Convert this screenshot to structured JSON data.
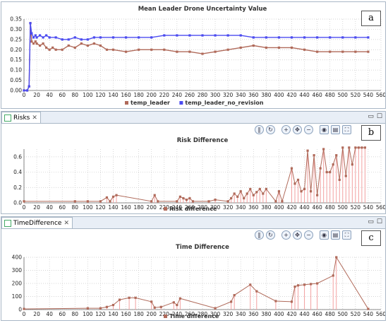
{
  "panels": [
    {
      "id": "a",
      "label": "a",
      "tab": null
    },
    {
      "id": "b",
      "label": "b",
      "tab": "Risks"
    },
    {
      "id": "c",
      "label": "c",
      "tab": "TimeDifference"
    }
  ],
  "colors": {
    "leader": "#b06a5a",
    "no_revision": "#4b4bf0",
    "marker": "#b06a5a",
    "spike": "#f2a0a0"
  },
  "chart_data": [
    {
      "type": "line",
      "title": "Mean Leader Drone Uncertainty Value",
      "xlim": [
        0,
        560
      ],
      "ylim": [
        0,
        0.35
      ],
      "xticks": [
        0,
        20,
        40,
        60,
        80,
        100,
        120,
        140,
        160,
        180,
        200,
        220,
        240,
        260,
        280,
        300,
        320,
        340,
        360,
        380,
        400,
        420,
        440,
        460,
        480,
        500,
        520,
        540,
        560
      ],
      "yticks": [
        "0.00",
        "0.05",
        "0.10",
        "0.15",
        "0.20",
        "0.25",
        "0.30",
        "0.35"
      ],
      "legend_position": "bottom",
      "series": [
        {
          "name": "temp_leader",
          "x": [
            0,
            5,
            8,
            10,
            12,
            15,
            18,
            20,
            25,
            30,
            35,
            40,
            45,
            50,
            60,
            70,
            80,
            90,
            100,
            110,
            120,
            130,
            140,
            160,
            180,
            200,
            220,
            240,
            260,
            280,
            300,
            320,
            340,
            360,
            380,
            400,
            420,
            440,
            460,
            480,
            500,
            520,
            540
          ],
          "y": [
            0.0,
            0.0,
            0.02,
            0.33,
            0.24,
            0.23,
            0.24,
            0.23,
            0.22,
            0.23,
            0.21,
            0.2,
            0.21,
            0.2,
            0.2,
            0.22,
            0.21,
            0.23,
            0.22,
            0.23,
            0.22,
            0.2,
            0.2,
            0.19,
            0.2,
            0.2,
            0.2,
            0.19,
            0.19,
            0.18,
            0.19,
            0.2,
            0.21,
            0.22,
            0.21,
            0.21,
            0.21,
            0.2,
            0.19,
            0.19,
            0.19,
            0.19,
            0.19
          ]
        },
        {
          "name": "temp_leader_no_revision",
          "x": [
            0,
            5,
            8,
            10,
            12,
            15,
            18,
            20,
            25,
            30,
            35,
            40,
            50,
            60,
            70,
            80,
            90,
            100,
            110,
            120,
            140,
            160,
            180,
            200,
            220,
            240,
            260,
            280,
            300,
            320,
            340,
            360,
            380,
            400,
            420,
            440,
            460,
            480,
            500,
            520,
            540
          ],
          "y": [
            0.0,
            0.0,
            0.02,
            0.33,
            0.28,
            0.26,
            0.27,
            0.26,
            0.27,
            0.26,
            0.27,
            0.26,
            0.26,
            0.25,
            0.25,
            0.26,
            0.25,
            0.25,
            0.26,
            0.26,
            0.26,
            0.26,
            0.26,
            0.26,
            0.27,
            0.27,
            0.27,
            0.27,
            0.27,
            0.27,
            0.27,
            0.26,
            0.26,
            0.26,
            0.26,
            0.26,
            0.26,
            0.26,
            0.26,
            0.26,
            0.26
          ]
        }
      ]
    },
    {
      "type": "line",
      "title": "Risk Difference",
      "xlim": [
        0,
        560
      ],
      "ylim": [
        0,
        0.7
      ],
      "xticks": [
        0,
        20,
        40,
        60,
        80,
        100,
        120,
        140,
        160,
        180,
        200,
        220,
        240,
        260,
        280,
        300,
        320,
        340,
        360,
        380,
        400,
        420,
        440,
        460,
        480,
        500,
        520,
        540,
        560
      ],
      "yticks": [
        "0.0",
        "0.2",
        "0.4",
        "0.6"
      ],
      "legend_position": "bottom",
      "series": [
        {
          "name": "Risk difference",
          "x": [
            0,
            80,
            100,
            120,
            130,
            135,
            140,
            145,
            200,
            205,
            210,
            240,
            245,
            250,
            255,
            260,
            265,
            290,
            300,
            320,
            325,
            330,
            335,
            340,
            345,
            350,
            355,
            360,
            365,
            370,
            375,
            380,
            395,
            400,
            405,
            420,
            425,
            430,
            435,
            440,
            445,
            450,
            455,
            460,
            465,
            470,
            475,
            480,
            485,
            490,
            495,
            500,
            505,
            510,
            515,
            520,
            525,
            530,
            535
          ],
          "y": [
            0.02,
            0.02,
            0.02,
            0.02,
            0.07,
            0.02,
            0.08,
            0.1,
            0.02,
            0.1,
            0.02,
            0.02,
            0.08,
            0.06,
            0.04,
            0.06,
            0.02,
            0.02,
            0.04,
            0.02,
            0.06,
            0.12,
            0.08,
            0.15,
            0.06,
            0.12,
            0.18,
            0.1,
            0.14,
            0.18,
            0.12,
            0.18,
            0.02,
            0.15,
            0.02,
            0.45,
            0.25,
            0.3,
            0.15,
            0.18,
            0.68,
            0.15,
            0.62,
            0.1,
            0.45,
            0.7,
            0.4,
            0.4,
            0.5,
            0.62,
            0.3,
            0.72,
            0.35,
            0.72,
            0.5,
            0.72,
            0.72,
            0.72,
            0.72
          ]
        }
      ]
    },
    {
      "type": "line",
      "title": "Time Difference",
      "xlim": [
        0,
        560
      ],
      "ylim": [
        0,
        400
      ],
      "xticks": [
        0,
        20,
        40,
        60,
        80,
        100,
        120,
        140,
        160,
        180,
        200,
        220,
        240,
        260,
        280,
        300,
        320,
        340,
        360,
        380,
        400,
        420,
        440,
        460,
        480,
        500,
        520,
        540,
        560
      ],
      "yticks": [
        "0",
        "100",
        "200",
        "300",
        "400"
      ],
      "legend_position": "bottom",
      "series": [
        {
          "name": "Time difference",
          "x": [
            0,
            100,
            120,
            130,
            140,
            150,
            165,
            175,
            200,
            205,
            215,
            235,
            240,
            245,
            300,
            325,
            330,
            355,
            365,
            395,
            420,
            425,
            430,
            440,
            450,
            460,
            485,
            490,
            540
          ],
          "y": [
            5,
            10,
            10,
            20,
            35,
            75,
            90,
            90,
            60,
            15,
            20,
            55,
            35,
            85,
            10,
            60,
            110,
            190,
            140,
            65,
            60,
            175,
            185,
            190,
            195,
            200,
            260,
            400,
            5
          ]
        }
      ]
    }
  ]
}
